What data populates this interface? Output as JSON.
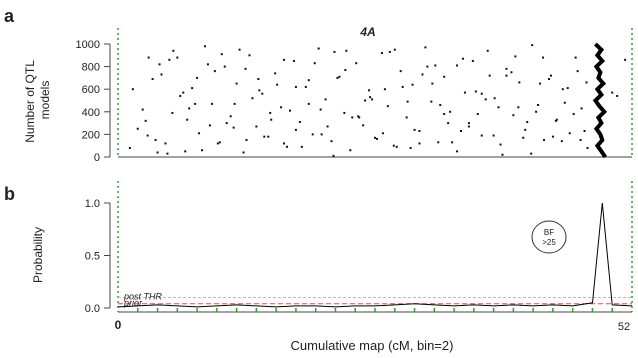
{
  "panel_a": {
    "letter": "a",
    "chromosome": "4A"
  },
  "panel_b": {
    "letter": "b",
    "bf_label": [
      "BF",
      ">25"
    ],
    "post_thr": "post THR",
    "prior": "prior"
  },
  "colors": {
    "points": "#111111",
    "trace": "#000000",
    "green_marks": "#2ca02c",
    "prior_line": "#d9534f",
    "post_line": "#bbbbbb"
  },
  "chart_data": [
    {
      "type": "scatter",
      "title": "4A",
      "ylabel": "Number of QTL models",
      "xlim": [
        0,
        52
      ],
      "ylim": [
        0,
        1000
      ],
      "yticks": [
        0,
        200,
        400,
        600,
        800,
        1000
      ],
      "grid": false,
      "dense_trace": {
        "x": [
          48.3,
          48.9,
          48.5,
          49.0,
          48.4,
          48.8,
          48.6,
          49.1,
          48.5,
          48.9,
          48.3,
          48.7,
          49.2,
          48.6,
          48.9,
          48.4,
          48.8,
          49.0,
          48.5,
          48.9,
          49.3
        ],
        "y": [
          1000,
          950,
          900,
          850,
          800,
          750,
          700,
          650,
          600,
          550,
          500,
          450,
          400,
          350,
          300,
          250,
          200,
          150,
          100,
          50,
          0
        ]
      },
      "points": {
        "x": [
          1.2,
          2.5,
          3.1,
          3.8,
          4.4,
          5.0,
          5.6,
          6.3,
          7.0,
          7.5,
          8.2,
          8.8,
          9.5,
          10.1,
          10.8,
          11.4,
          12.0,
          12.7,
          13.3,
          14.0,
          14.6,
          15.2,
          15.9,
          16.5,
          17.1,
          17.8,
          18.4,
          19.0,
          19.7,
          20.3,
          21.0,
          21.6,
          22.2,
          22.9,
          23.5,
          24.1,
          24.8,
          25.4,
          26.0,
          26.7,
          27.3,
          27.9,
          28.6,
          29.2,
          29.8,
          30.5,
          31.1,
          31.7,
          32.4,
          33.0,
          33.6,
          34.3,
          34.9,
          35.5,
          36.2,
          36.8,
          37.4,
          38.1,
          38.7,
          39.3,
          40.0,
          40.6,
          41.2,
          41.9,
          42.5,
          43.1,
          43.8,
          44.4,
          45.0,
          45.7,
          46.3,
          46.9,
          47.5,
          50.5,
          51.3,
          2.0,
          3.5,
          4.8,
          6.0,
          7.2,
          8.5,
          9.8,
          11.0,
          12.3,
          13.6,
          14.8,
          16.1,
          17.4,
          18.6,
          19.9,
          21.2,
          22.4,
          23.7,
          25.0,
          26.2,
          27.5,
          28.8,
          30.0,
          31.3,
          32.6,
          33.8,
          35.1,
          36.4,
          37.6,
          38.9,
          40.2,
          41.4,
          42.7,
          44.0,
          45.2,
          46.5,
          47.2,
          50.0,
          1.5,
          3.0,
          4.2,
          5.5,
          6.8,
          8.0,
          9.3,
          10.5,
          11.8,
          13.0,
          14.3,
          15.5,
          16.8,
          18.0,
          19.3,
          20.5,
          21.8,
          23.0,
          24.3,
          25.5,
          26.8,
          28.0,
          29.3,
          30.5,
          31.8,
          33.0,
          34.3,
          35.5,
          36.8,
          38.0,
          39.3,
          40.5,
          41.8,
          43.0,
          44.3,
          45.5,
          46.8,
          2.8,
          5.2,
          7.8,
          10.3,
          12.9,
          15.4,
          18.0,
          20.6,
          23.1,
          25.7,
          28.2,
          30.8,
          33.4,
          35.9,
          38.5,
          41.0,
          43.6,
          46.1,
          4.0,
          6.6,
          9.1,
          11.7,
          14.2,
          16.8,
          19.3,
          21.9,
          24.4,
          27.0,
          29.6,
          32.1,
          34.7,
          37.2,
          39.8,
          42.3,
          44.9,
          47.4
        ],
        "y": [
          80,
          420,
          880,
          150,
          730,
          30,
          940,
          540,
          330,
          610,
          210,
          980,
          470,
          120,
          800,
          360,
          650,
          40,
          900,
          270,
          560,
          180,
          740,
          440,
          90,
          850,
          310,
          620,
          200,
          960,
          510,
          140,
          700,
          390,
          60,
          830,
          280,
          590,
          170,
          920,
          450,
          100,
          760,
          350,
          640,
          230,
          970,
          490,
          130,
          710,
          400,
          50,
          870,
          300,
          580,
          190,
          940,
          520,
          110,
          780,
          370,
          660,
          240,
          990,
          460,
          150,
          720,
          330,
          600,
          210,
          880,
          430,
          80,
          540,
          860,
          250,
          690,
          120,
          880,
          430,
          60,
          760,
          300,
          950,
          520,
          180,
          640,
          410,
          90,
          830,
          270,
          710,
          350,
          500,
          160,
          930,
          620,
          240,
          800,
          460,
          130,
          570,
          380,
          720,
          20,
          890,
          310,
          650,
          180,
          480,
          760,
          230,
          570,
          600,
          190,
          820,
          390,
          50,
          700,
          280,
          910,
          470,
          150,
          590,
          330,
          860,
          240,
          680,
          420,
          10,
          770,
          360,
          530,
          210,
          950,
          490,
          120,
          650,
          380,
          810,
          270,
          560,
          190,
          720,
          440,
          30,
          880,
          320,
          610,
          150,
          320,
          860,
          470,
          130,
          780,
          390,
          620,
          200,
          940,
          510,
          90,
          730,
          300,
          850,
          440,
          170,
          690,
          380,
          40,
          570,
          820,
          260,
          690,
          120,
          470,
          930,
          350,
          600,
          80,
          810,
          230,
          510,
          750,
          400,
          140,
          660
        ]
      }
    },
    {
      "type": "line",
      "ylabel": "Probability",
      "xlabel": "Cumulative map (cM, bin=2)",
      "xlim": [
        0,
        52
      ],
      "ylim": [
        0,
        1.0
      ],
      "xticks": [
        0,
        52
      ],
      "yticks": [
        0.0,
        0.5,
        1.0
      ],
      "annotations": [
        "BF >25",
        "post THR",
        "prior"
      ],
      "thresholds": {
        "post_thr": 0.1,
        "prior": 0.04
      },
      "x": [
        0,
        2,
        4,
        6,
        8,
        10,
        12,
        14,
        16,
        18,
        20,
        22,
        24,
        26,
        28,
        30,
        32,
        34,
        36,
        38,
        40,
        42,
        44,
        46,
        48,
        49,
        50,
        52
      ],
      "y": [
        0.01,
        0.02,
        0.03,
        0.02,
        0.01,
        0.02,
        0.03,
        0.02,
        0.01,
        0.02,
        0.02,
        0.01,
        0.02,
        0.02,
        0.03,
        0.04,
        0.03,
        0.02,
        0.03,
        0.02,
        0.03,
        0.02,
        0.03,
        0.02,
        0.05,
        1.0,
        0.03,
        0.02
      ]
    }
  ]
}
